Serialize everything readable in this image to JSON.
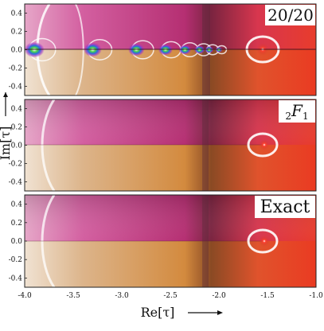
{
  "chart_data": [
    {
      "type": "heatmap",
      "label": "20/20",
      "xlim": [
        -4.0,
        -1.0
      ],
      "ylim": [
        -0.5,
        0.5
      ],
      "y_ticks": [
        "0.4",
        "0.2",
        "0.0",
        "-0.2",
        "-0.4"
      ],
      "features": {
        "pole_x": [
          -3.9,
          -3.3,
          -2.85,
          -2.55,
          -2.35,
          -2.2,
          -2.1,
          -2.0
        ],
        "cut": true,
        "loop_center_x": -1.55
      }
    },
    {
      "type": "heatmap",
      "label": "₂F₁",
      "label_main": "F",
      "label_pre": "2",
      "label_post": "1",
      "xlim": [
        -4.0,
        -1.0
      ],
      "ylim": [
        -0.5,
        0.5
      ],
      "y_ticks": [
        "0.4",
        "0.2",
        "0.0",
        "-0.2",
        "-0.4"
      ],
      "features": {
        "loop_center_x": -1.55
      }
    },
    {
      "type": "heatmap",
      "label": "Exact",
      "xlim": [
        -4.0,
        -1.0
      ],
      "ylim": [
        -0.5,
        0.5
      ],
      "y_ticks": [
        "0.4",
        "0.2",
        "0.0",
        "-0.2",
        "-0.4"
      ],
      "x_ticks": [
        "-4.0",
        "-3.5",
        "-3.0",
        "-2.5",
        "-2.0",
        "-1.5",
        "-1.0"
      ],
      "features": {
        "loop_center_x": -1.55
      }
    }
  ],
  "axes": {
    "ylabel": "Im[τ]",
    "xlabel": "Re[τ]",
    "colors": {
      "magenta": "#c0377f",
      "pink": "#e89ac0",
      "orange": "#d97a2a",
      "red": "#e0303a",
      "tan": "#d6b08a",
      "dark": "#5a2a3a"
    }
  }
}
